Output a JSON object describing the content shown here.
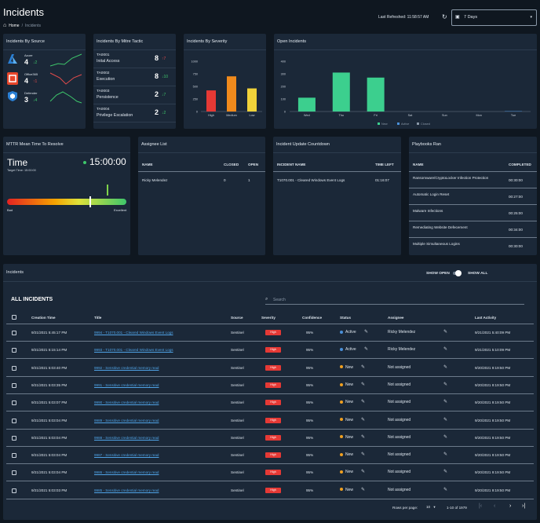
{
  "header": {
    "title": "Incidents",
    "breadcrumb": [
      "Home",
      "Incidents"
    ],
    "last_refreshed": "Last Refreshed: 11:58:57 AM",
    "range": "7 Days"
  },
  "by_source": {
    "title": "Incidents By Source",
    "items": [
      {
        "name": "Azure",
        "count": "4",
        "delta": "2",
        "dir": "down"
      },
      {
        "name": "Office365",
        "count": "4",
        "delta": "1",
        "dir": "up"
      },
      {
        "name": "Defender",
        "count": "3",
        "delta": "4",
        "dir": "down"
      }
    ]
  },
  "mitre": {
    "title": "Incidents By Mitre Tactic",
    "items": [
      {
        "code": "TA0001",
        "name": "Inital Access",
        "count": "8",
        "delta": "7",
        "dir": "up"
      },
      {
        "code": "TA0002",
        "name": "Execution",
        "count": "8",
        "delta": "10",
        "dir": "down"
      },
      {
        "code": "TA0003",
        "name": "Persistence",
        "count": "2",
        "delta": "7",
        "dir": "down"
      },
      {
        "code": "TA0004",
        "name": "Privilege Escalation",
        "count": "2",
        "delta": "2",
        "dir": "down"
      }
    ]
  },
  "severity": {
    "title": "Incidents By Severity",
    "chart_data": {
      "type": "bar",
      "categories": [
        "High",
        "Medium",
        "Low"
      ],
      "values": [
        420,
        700,
        460
      ],
      "colors": [
        "#e53935",
        "#f08a1c",
        "#f0d23a"
      ],
      "yticks": [
        "1000",
        "750",
        "500",
        "250",
        "0"
      ],
      "ylim": [
        0,
        1000
      ]
    }
  },
  "open": {
    "title": "Open Incidents",
    "chart_data": {
      "type": "bar",
      "categories": [
        "Wed",
        "Thu",
        "Fri",
        "Sat",
        "Sun",
        "Mon",
        "Tue"
      ],
      "series": [
        {
          "name": "New",
          "values": [
            110,
            310,
            270,
            0,
            0,
            0,
            0
          ],
          "color": "#3ccf8e"
        },
        {
          "name": "Active",
          "values": [
            0,
            0,
            0,
            0,
            0,
            0,
            3
          ],
          "color": "#4a90d9"
        },
        {
          "name": "Closed",
          "values": [
            0,
            0,
            0,
            0,
            0,
            0,
            0
          ],
          "color": "#8a98a8"
        }
      ],
      "yticks": [
        "400",
        "300",
        "200",
        "100",
        "0"
      ],
      "ylim": [
        0,
        400
      ]
    }
  },
  "mttr": {
    "title": "MTTR Mean Time To Resolve",
    "label": "Time",
    "target": "Target Time: 15:00:00",
    "value": "15:00:00",
    "gauge_fraction": 0.7,
    "bad": "Bad",
    "excellent": "Excellent"
  },
  "assignee": {
    "title": "Assignee List",
    "cols": [
      "NAME",
      "CLOSED",
      "OPEN"
    ],
    "rows": [
      [
        "Ricky Melendez",
        "0",
        "1"
      ]
    ]
  },
  "countdown": {
    "title": "Incident Update Countdown",
    "cols": [
      "INCIDENT NAME",
      "TIME LEFT"
    ],
    "rows": [
      [
        "T1070.001 - Cleared Windows Event Logs",
        "01:16:07"
      ]
    ]
  },
  "playbooks": {
    "title": "Playbooks Ran",
    "cols": [
      "NAME",
      "COMPLETED"
    ],
    "rows": [
      [
        "Ransomware/CryptoLocker Infection Protection",
        "00:30:00"
      ],
      [
        "Automatic Login Reset",
        "00:27:00"
      ],
      [
        "Malware Infections",
        "00:25:00"
      ],
      [
        "Remediating Website Defecement",
        "00:34:00"
      ],
      [
        "Multiple Simultaneous Logins",
        "00:30:00"
      ]
    ]
  },
  "incidents": {
    "panel_title": "Incidents",
    "show_open": "SHOW OPEN",
    "show_all": "SHOW ALL",
    "heading": "ALL INCIDENTS",
    "search_placeholder": "Search",
    "cols": [
      "Creation Time",
      "Title",
      "Source",
      "Severity",
      "Confidence",
      "Status",
      "Assignee",
      "Last Activity"
    ],
    "rows": [
      [
        "9/21/2021 5:45:17 PM",
        "9994 - T1070.001 - Cleared Windows Event Logs",
        "Sentinel",
        "High",
        "95%",
        "Active",
        "Ricky Melendez",
        "9/21/2021 5:40:09 PM"
      ],
      [
        "9/21/2021 5:15:14 PM",
        "9993 - T1070.001 - Cleared Windows Event Logs",
        "Sentinel",
        "High",
        "95%",
        "Active",
        "Ricky Melendez",
        "9/21/2021 5:10:09 PM"
      ],
      [
        "9/21/2021 5:03:40 PM",
        "9992 - Sensitive credential memory read",
        "Sentinel",
        "High",
        "95%",
        "New",
        "Not assigned",
        "9/20/2021 9:19:50 PM"
      ],
      [
        "9/21/2021 5:03:35 PM",
        "9991 - Sensitive credential memory read",
        "Sentinel",
        "High",
        "95%",
        "New",
        "Not assigned",
        "9/20/2021 9:19:50 PM"
      ],
      [
        "9/21/2021 5:03:07 PM",
        "9990 - Sensitive credential memory read",
        "Sentinel",
        "High",
        "95%",
        "New",
        "Not assigned",
        "9/20/2021 9:19:50 PM"
      ],
      [
        "9/21/2021 5:03:04 PM",
        "9989 - Sensitive credential memory read",
        "Sentinel",
        "High",
        "95%",
        "New",
        "Not assigned",
        "9/20/2021 9:19:50 PM"
      ],
      [
        "9/21/2021 5:03:04 PM",
        "9988 - Sensitive credential memory read",
        "Sentinel",
        "High",
        "95%",
        "New",
        "Not assigned",
        "9/20/2021 9:19:50 PM"
      ],
      [
        "9/21/2021 5:03:04 PM",
        "9987 - Sensitive credential memory read",
        "Sentinel",
        "High",
        "95%",
        "New",
        "Not assigned",
        "9/20/2021 9:19:50 PM"
      ],
      [
        "9/21/2021 5:03:04 PM",
        "9986 - Sensitive credential memory read",
        "Sentinel",
        "High",
        "95%",
        "New",
        "Not assigned",
        "9/20/2021 9:19:50 PM"
      ],
      [
        "9/21/2021 5:03:03 PM",
        "9985 - Sensitive credential memory read",
        "Sentinel",
        "High",
        "95%",
        "New",
        "Not assigned",
        "9/20/2021 9:19:50 PM"
      ]
    ],
    "status_colors": {
      "Active": "#4a90d9",
      "New": "#f0a020"
    },
    "rows_per_page_label": "Rows per page:",
    "rows_per_page": "10",
    "range": "1-10 of 1979"
  },
  "colors": {
    "bg": "#0f1720",
    "panel": "#1b2838",
    "accent_green": "#3ec66b",
    "accent_red": "#e24b4b"
  }
}
